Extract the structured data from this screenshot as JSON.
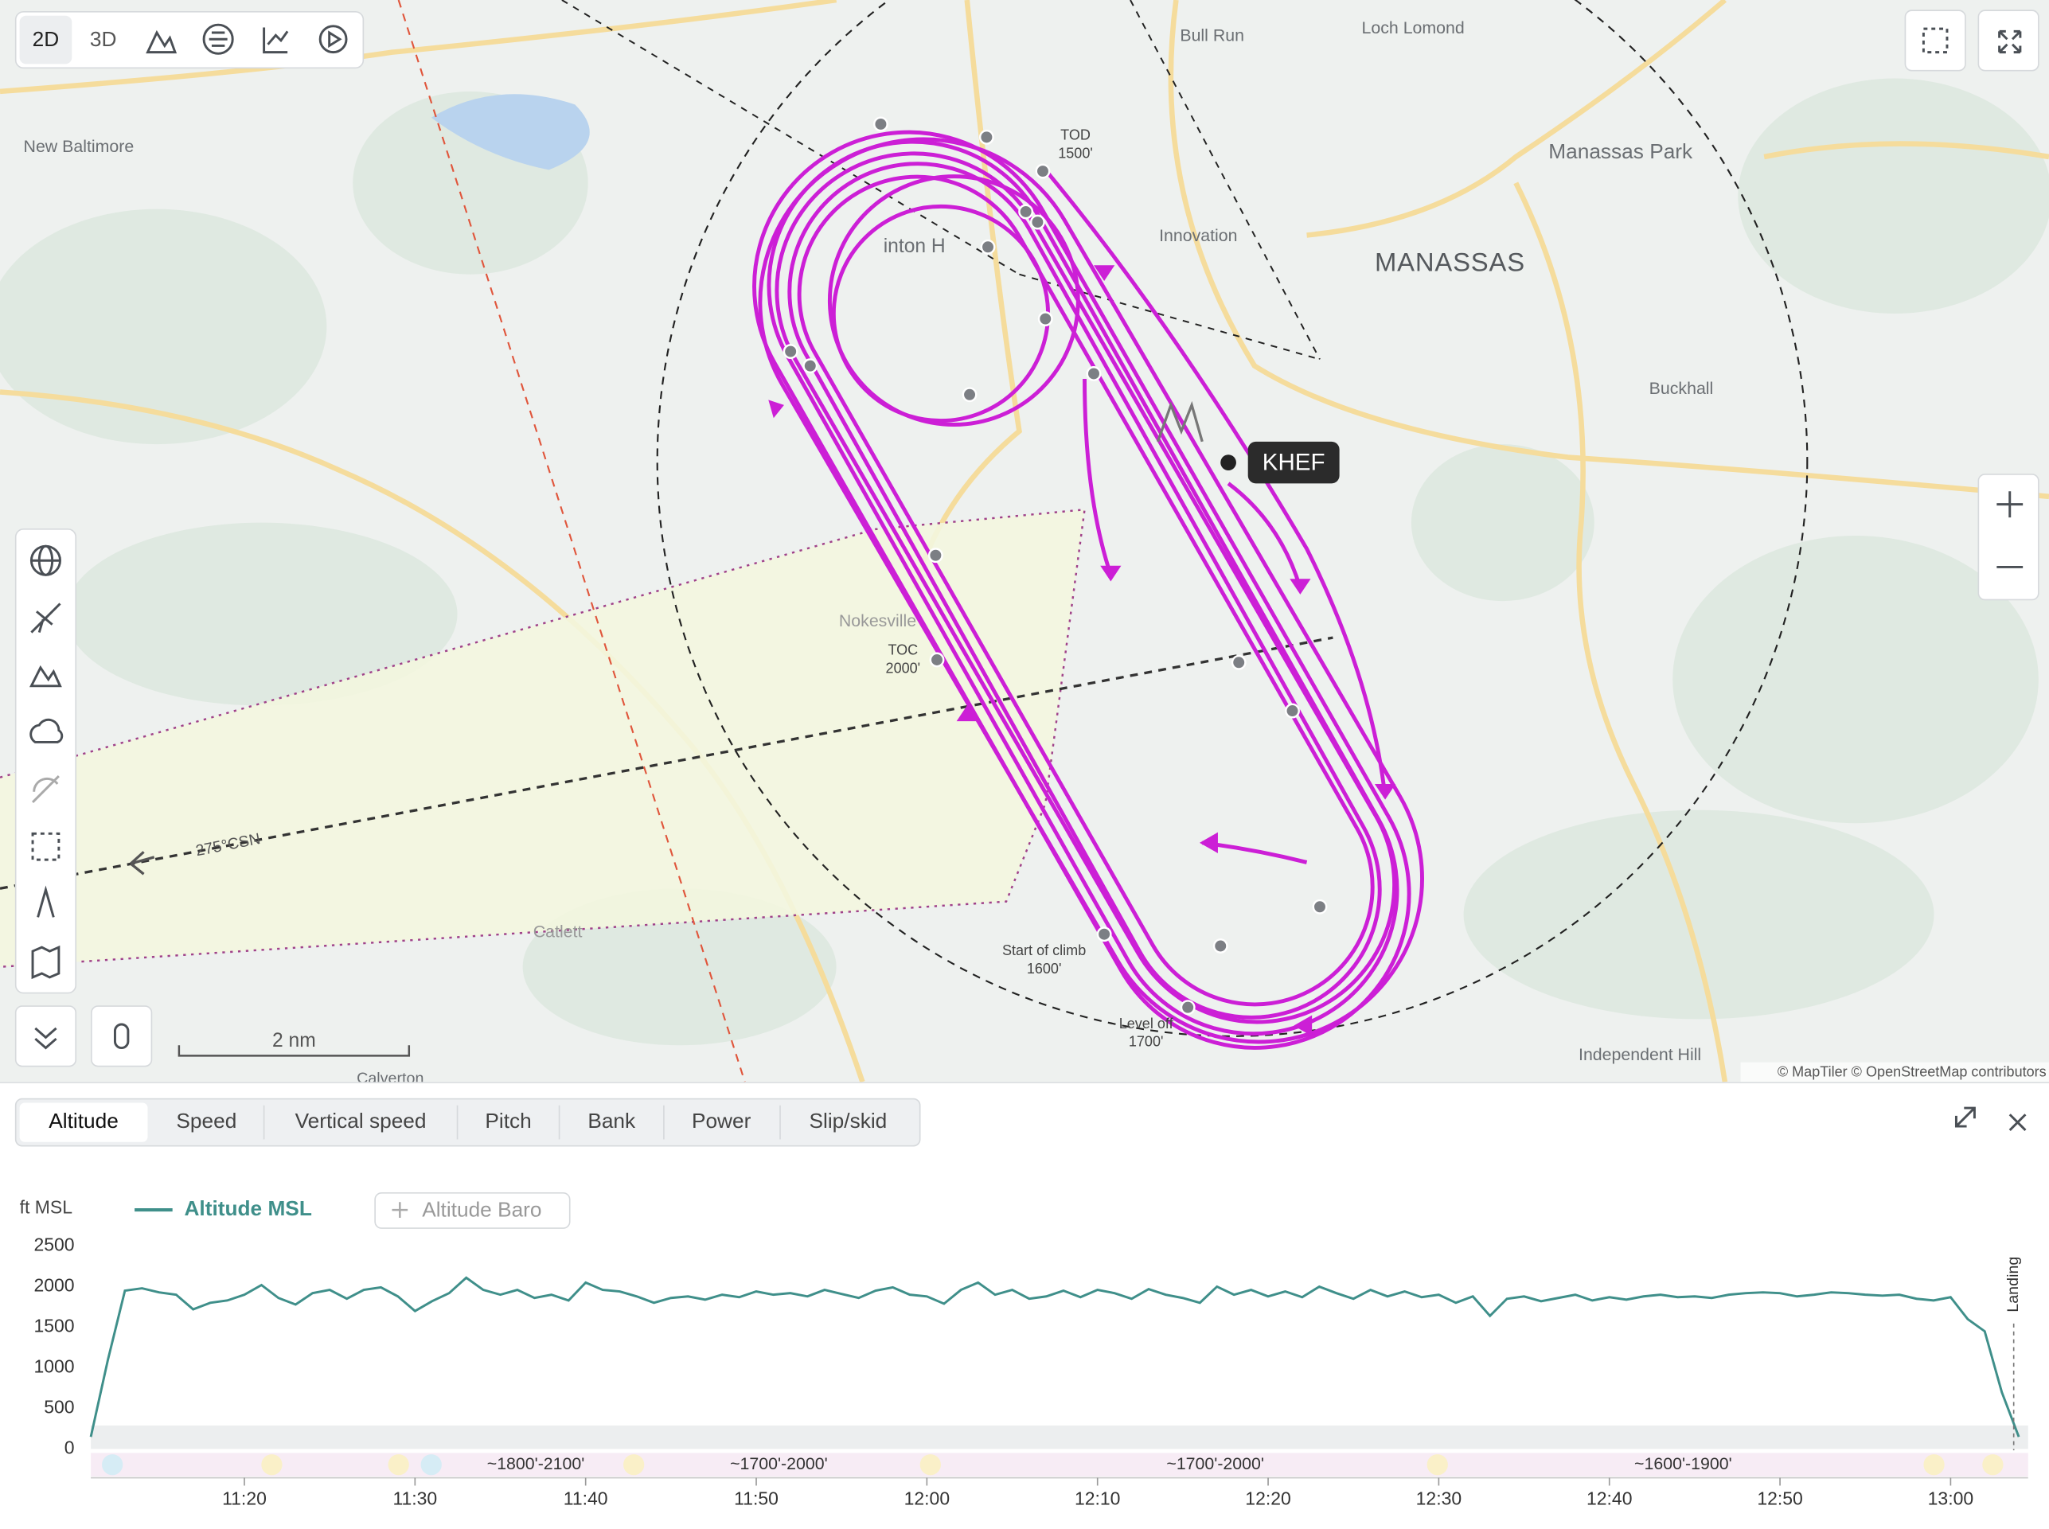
{
  "toolbar": {
    "modes": [
      "2D",
      "3D"
    ]
  },
  "map": {
    "places": [
      "Bull Run",
      "Loch Lomond",
      "New Baltimore",
      "Manassas Park",
      "MANASSAS",
      "Innovation",
      "Buckhall",
      "Nokesville",
      "Catlett",
      "Independent Hill",
      "Calverton",
      "inton H"
    ],
    "airport": "KHEF",
    "markers": [
      {
        "label": "TOD",
        "altitude": "1500'"
      },
      {
        "label": "TOC",
        "altitude": "2000'"
      },
      {
        "label": "Start of climb",
        "altitude": "1600'"
      },
      {
        "label": "Level off",
        "altitude": "1700'"
      }
    ],
    "course": "275°CSN",
    "scale": "2 nm",
    "attribution": "© MapTiler © OpenStreetMap contributors"
  },
  "tabs": [
    "Altitude",
    "Speed",
    "Vertical speed",
    "Pitch",
    "Bank",
    "Power",
    "Slip/skid"
  ],
  "add_series_button": "Altitude Baro",
  "chart_data": {
    "type": "line",
    "y_label": "ft MSL",
    "x": [
      "11:11",
      "11:12",
      "11:13",
      "11:14",
      "11:15",
      "11:16",
      "11:17",
      "11:18",
      "11:19",
      "11:20",
      "11:21",
      "11:22",
      "11:23",
      "11:24",
      "11:25",
      "11:26",
      "11:27",
      "11:28",
      "11:29",
      "11:30",
      "11:31",
      "11:32",
      "11:33",
      "11:34",
      "11:35",
      "11:36",
      "11:37",
      "11:38",
      "11:39",
      "11:40",
      "11:41",
      "11:42",
      "11:43",
      "11:44",
      "11:45",
      "11:46",
      "11:47",
      "11:48",
      "11:49",
      "11:50",
      "11:51",
      "11:52",
      "11:53",
      "11:54",
      "11:55",
      "11:56",
      "11:57",
      "11:58",
      "11:59",
      "12:00",
      "12:01",
      "12:02",
      "12:03",
      "12:04",
      "12:05",
      "12:06",
      "12:07",
      "12:08",
      "12:09",
      "12:10",
      "12:11",
      "12:12",
      "12:13",
      "12:14",
      "12:15",
      "12:16",
      "12:17",
      "12:18",
      "12:19",
      "12:20",
      "12:21",
      "12:22",
      "12:23",
      "12:24",
      "12:25",
      "12:26",
      "12:27",
      "12:28",
      "12:29",
      "12:30",
      "12:31",
      "12:32",
      "12:33",
      "12:34",
      "12:35",
      "12:36",
      "12:37",
      "12:38",
      "12:39",
      "12:40",
      "12:41",
      "12:42",
      "12:43",
      "12:44",
      "12:45",
      "12:46",
      "12:47",
      "12:48",
      "12:49",
      "12:50",
      "12:51",
      "12:52",
      "12:53",
      "12:54",
      "12:55",
      "12:56",
      "12:57",
      "12:58",
      "12:59",
      "13:00",
      "13:01",
      "13:02",
      "13:03",
      "13:04"
    ],
    "series": [
      {
        "name": "Altitude MSL",
        "color": "#3f8f8a",
        "values": [
          150,
          1100,
          1950,
          1980,
          1930,
          1900,
          1720,
          1800,
          1830,
          1900,
          2020,
          1860,
          1780,
          1920,
          1960,
          1850,
          1960,
          1990,
          1880,
          1700,
          1820,
          1920,
          2110,
          1960,
          1900,
          1960,
          1860,
          1900,
          1830,
          2050,
          1960,
          1940,
          1880,
          1800,
          1860,
          1880,
          1840,
          1900,
          1870,
          1940,
          1900,
          1920,
          1880,
          1960,
          1910,
          1860,
          1950,
          1990,
          1900,
          1880,
          1790,
          1960,
          2050,
          1900,
          1960,
          1850,
          1880,
          1950,
          1870,
          1960,
          1920,
          1850,
          1970,
          1900,
          1860,
          1800,
          2000,
          1900,
          1960,
          1880,
          1940,
          1870,
          2000,
          1920,
          1850,
          1960,
          1880,
          1940,
          1870,
          1900,
          1800,
          1880,
          1640,
          1850,
          1880,
          1820,
          1860,
          1900,
          1830,
          1870,
          1840,
          1880,
          1900,
          1870,
          1880,
          1860,
          1900,
          1920,
          1930,
          1920,
          1880,
          1900,
          1930,
          1920,
          1900,
          1890,
          1900,
          1850,
          1830,
          1870,
          1600,
          1450,
          700,
          150
        ]
      }
    ],
    "xlim": [
      "11:11",
      "13:05"
    ],
    "xticks": [
      "11:20",
      "11:30",
      "11:40",
      "11:50",
      "12:00",
      "12:10",
      "12:20",
      "12:30",
      "12:40",
      "12:50",
      "13:00"
    ],
    "ylim": [
      0,
      2800
    ],
    "yticks": [
      0,
      500,
      1000,
      1500,
      2000,
      2500
    ],
    "range_labels": [
      "~1800'-2100'",
      "~1700'-2000'",
      "~1700'-2000'",
      "~1600'-1900'"
    ],
    "event_label": "Landing"
  }
}
